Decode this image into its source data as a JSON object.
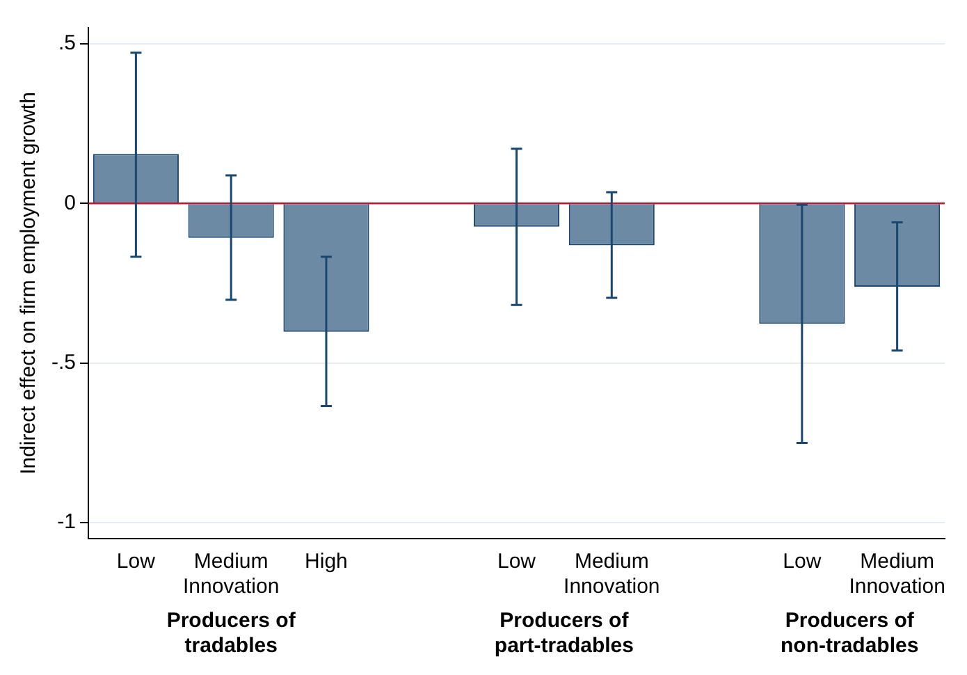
{
  "chart_data": {
    "type": "bar",
    "ylabel": "Indirect effect on firm employment growth",
    "categories": [
      "Low",
      "Medium Innovation",
      "High",
      null,
      "Low",
      "Medium Innovation",
      null,
      "Low",
      "Medium Innovation"
    ],
    "values": [
      0.155,
      -0.108,
      -0.402,
      null,
      -0.073,
      -0.131,
      null,
      -0.377,
      -0.261
    ],
    "errors": [
      [
        -0.167,
        0.472
      ],
      [
        -0.302,
        0.088
      ],
      [
        -0.635,
        -0.167
      ],
      null,
      [
        -0.318,
        0.171
      ],
      [
        -0.296,
        0.035
      ],
      null,
      [
        -0.75,
        -0.004
      ],
      [
        -0.461,
        -0.059
      ]
    ],
    "color": "#6d8aa5",
    "ylim": [
      -1.05,
      0.55
    ],
    "yticks": [
      {
        "value": 0.5,
        "label": ".5"
      },
      {
        "value": 0,
        "label": "0"
      },
      {
        "value": -0.5,
        "label": "-.5"
      },
      {
        "value": -1,
        "label": "-1"
      }
    ],
    "grid": "y",
    "ref_lines": [
      {
        "axis": "y",
        "value": 0,
        "color": "#c8102e"
      }
    ],
    "annotations": [
      "Producers of tradables",
      "Producers of part-tradables",
      "Producers of non-tradables"
    ]
  }
}
